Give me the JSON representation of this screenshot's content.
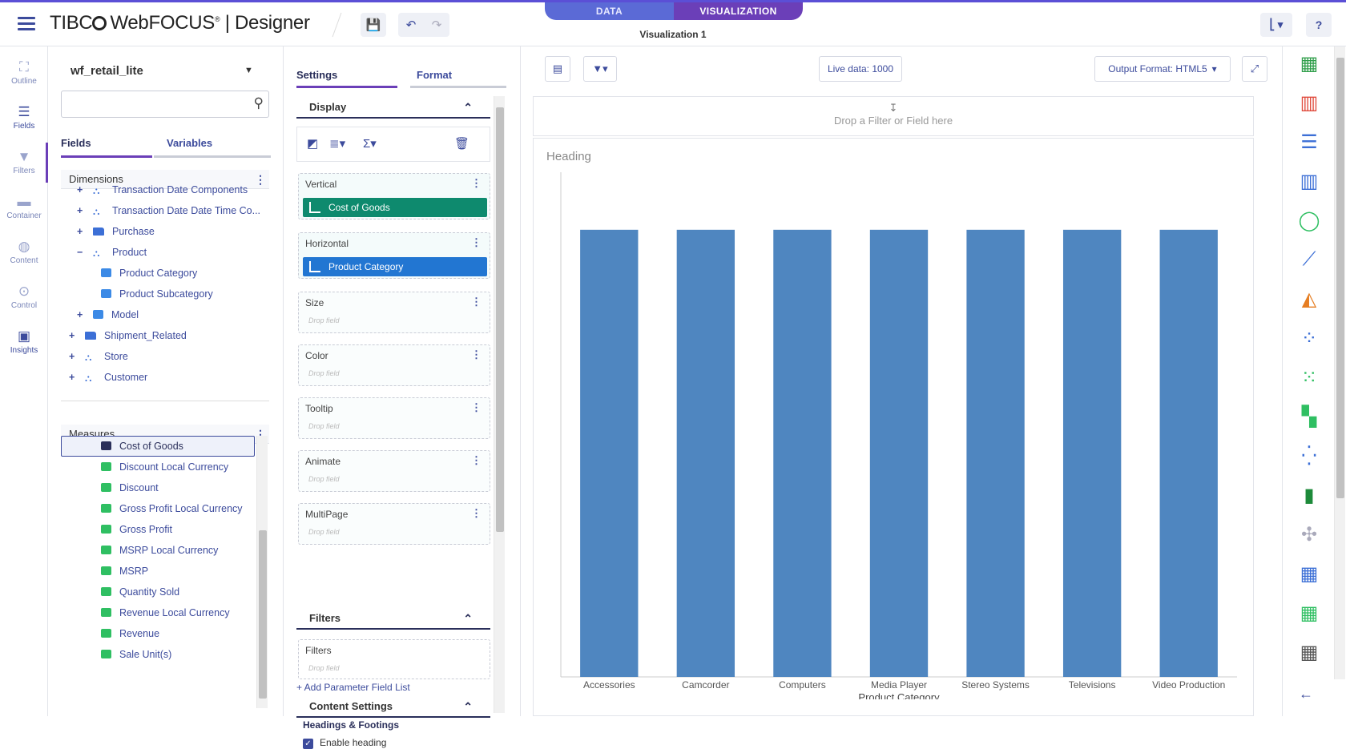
{
  "app": {
    "brand": "TIBCO WebFOCUS | Designer",
    "brand_a": "TIBC",
    "brand_b": "WebFOCUS",
    "brand_c": "| Designer",
    "mode_tabs": [
      "DATA",
      "VISUALIZATION"
    ],
    "active_mode": "VISUALIZATION",
    "visualization_title": "Visualization 1",
    "accent": "#6b3fb8",
    "primary": "#3c4b9c"
  },
  "leftnav": [
    {
      "label": "Outline",
      "icon": "outline-icon"
    },
    {
      "label": "Fields",
      "icon": "list-icon"
    },
    {
      "label": "Filters",
      "icon": "filter-icon"
    },
    {
      "label": "Container",
      "icon": "container-icon"
    },
    {
      "label": "Content",
      "icon": "globe-icon"
    },
    {
      "label": "Control",
      "icon": "toggle-icon"
    },
    {
      "label": "Insights",
      "icon": "insights-icon"
    }
  ],
  "fields": {
    "datasource": "wf_retail_lite",
    "search_placeholder": "",
    "tabs": [
      "Fields",
      "Variables"
    ],
    "dimensions_label": "Dimensions",
    "dimensions": [
      {
        "label": "Transaction Date Components",
        "expander": "+",
        "icon": "hier",
        "indent": 1
      },
      {
        "label": "Transaction Date Date Time Co...",
        "expander": "+",
        "icon": "hier",
        "indent": 1
      },
      {
        "label": "Purchase",
        "expander": "+",
        "icon": "folder",
        "indent": 1
      },
      {
        "label": "Product",
        "expander": "−",
        "icon": "hier",
        "indent": 1
      },
      {
        "label": "Product Category",
        "expander": "",
        "icon": "abc",
        "indent": 2
      },
      {
        "label": "Product Subcategory",
        "expander": "",
        "icon": "abc",
        "indent": 2
      },
      {
        "label": "Model",
        "expander": "+",
        "icon": "abc",
        "indent": 1
      },
      {
        "label": "Shipment_Related",
        "expander": "+",
        "icon": "folder",
        "indent": 0
      },
      {
        "label": "Store",
        "expander": "+",
        "icon": "hier",
        "indent": 0
      },
      {
        "label": "Customer",
        "expander": "+",
        "icon": "hier",
        "indent": 0
      }
    ],
    "measures_label": "Measures",
    "measures": [
      "Cost of Goods",
      "Discount Local Currency",
      "Discount",
      "Gross Profit Local Currency",
      "Gross Profit",
      "MSRP Local Currency",
      "MSRP",
      "Quantity Sold",
      "Revenue Local Currency",
      "Revenue",
      "Sale Unit(s)"
    ]
  },
  "settings": {
    "tabs": [
      "Settings",
      "Format"
    ],
    "display_label": "Display",
    "buckets": [
      {
        "label": "Vertical",
        "chip": "Cost of Goods",
        "chip_color": "green"
      },
      {
        "label": "Horizontal",
        "chip": "Product Category",
        "chip_color": "blue"
      },
      {
        "label": "Size",
        "drop": "Drop field"
      },
      {
        "label": "Color",
        "drop": "Drop field"
      },
      {
        "label": "Tooltip",
        "drop": "Drop field"
      },
      {
        "label": "Animate",
        "drop": "Drop field"
      },
      {
        "label": "MultiPage",
        "drop": "Drop field"
      }
    ],
    "filters_label": "Filters",
    "filters_bucket": {
      "label": "Filters",
      "drop": "Drop field"
    },
    "add_param": "+ Add Parameter Field List",
    "content_settings": "Content Settings",
    "headings_footings": "Headings & Footings",
    "enable_heading": "Enable heading"
  },
  "canvas": {
    "live_data": "Live data: 1000",
    "output_format": "Output Format: HTML5",
    "drop_hint": "Drop a Filter or Field here",
    "heading": "Heading"
  },
  "chart_data": {
    "type": "bar",
    "title": "Heading",
    "xlabel": "Product Category",
    "ylabel": "",
    "categories": [
      "Accessories",
      "Camcorder",
      "Computers",
      "Media Player",
      "Stereo Systems",
      "Televisions",
      "Video Production"
    ],
    "values": [
      1,
      1,
      1,
      1,
      1,
      1,
      1
    ],
    "ylim": [
      0,
      1.1
    ],
    "bar_color": "#4f86c0",
    "grid": false
  },
  "chart_types": [
    "table",
    "column",
    "bar",
    "histogram",
    "ring",
    "line",
    "area",
    "scatter",
    "matrix",
    "treemap",
    "bubble",
    "boxplot",
    "map",
    "crosstab",
    "grid",
    "plain-table"
  ]
}
